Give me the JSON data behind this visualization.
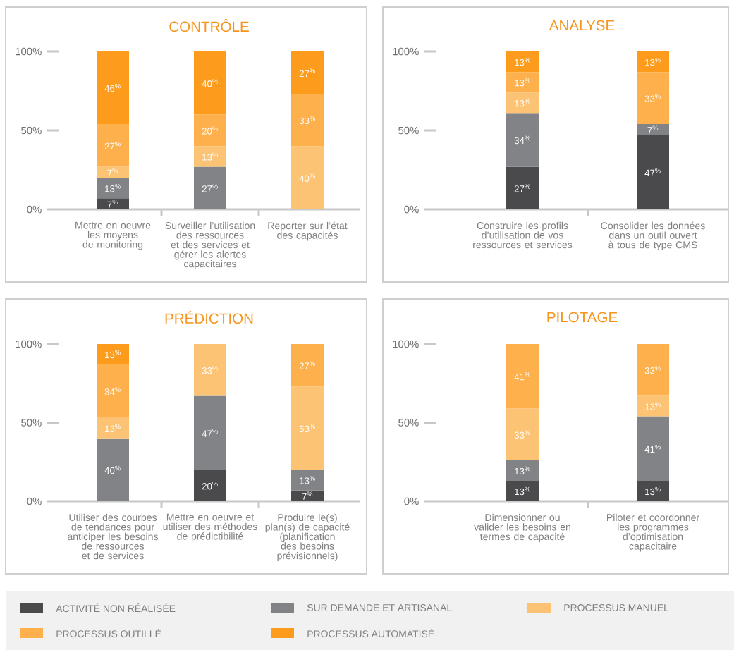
{
  "chart_data": [
    {
      "type": "bar",
      "title": "CONTRÔLE",
      "stacked": true,
      "categories": [
        "Mettre en oeuvre les moyens de monitoring",
        "Surveiller l’utilisation des ressources et des services et gérer les alertes capacitaires",
        "Reporter sur l’état des capacités"
      ],
      "ylim": [
        0,
        100
      ],
      "yticks": [
        {
          "value": 0,
          "label": "0%"
        },
        {
          "value": 50,
          "label": "50%"
        },
        {
          "value": 100,
          "label": "100%"
        }
      ],
      "series": [
        {
          "color": "#4a4a4c",
          "values": [
            7,
            null,
            null
          ],
          "value_labels": [
            "7$^{%}$",
            null,
            null
          ]
        },
        {
          "color": "#828386",
          "values": [
            13,
            27,
            null
          ],
          "value_labels": [
            "13$^{%}$",
            "27$^{%}$",
            null
          ]
        },
        {
          "color": "#fcc374",
          "values": [
            7,
            13,
            40
          ],
          "value_labels": [
            "7$^{%}$",
            "13$^{%}$",
            "40$^{%}$"
          ]
        },
        {
          "color": "#fdb04b",
          "values": [
            27,
            20,
            33
          ],
          "value_labels": [
            "27$^{%}$",
            "20$^{%}$",
            "33$^{%}$"
          ]
        },
        {
          "color": "#fd9c1c",
          "values": [
            46,
            40,
            27
          ],
          "value_labels": [
            "46$^{%}$",
            "40$^{%}$",
            "27$^{%}$"
          ]
        }
      ]
    },
    {
      "type": "bar",
      "title": "ANALYSE",
      "stacked": true,
      "categories": [
        "Construire les profils d’utilisation de vos ressources et services",
        "Consolider les données dans un outil ouvert à tous de type CMS"
      ],
      "ylim": [
        0,
        100
      ],
      "yticks": [
        {
          "value": 0,
          "label": "0%"
        },
        {
          "value": 50,
          "label": "50%"
        },
        {
          "value": 100,
          "label": "100%"
        }
      ],
      "series": [
        {
          "color": "#4a4a4c",
          "values": [
            27,
            47
          ],
          "value_labels": [
            "27$^{%}$",
            "47$^{%}$"
          ]
        },
        {
          "color": "#828386",
          "values": [
            34,
            7
          ],
          "value_labels": [
            "34$^{%}$",
            "7$^{%}$"
          ]
        },
        {
          "color": "#fcc374",
          "values": [
            13,
            null
          ],
          "value_labels": [
            "13$^{%}$",
            null
          ]
        },
        {
          "color": "#fdb04b",
          "values": [
            13,
            33
          ],
          "value_labels": [
            "13$^{%}$",
            "33$^{%}$"
          ]
        },
        {
          "color": "#fd9c1c",
          "values": [
            13,
            13
          ],
          "value_labels": [
            "13$^{%}$",
            "13$^{%}$"
          ]
        }
      ]
    },
    {
      "type": "bar",
      "title": "PRÉDICTION",
      "stacked": true,
      "categories": [
        "Utiliser des courbes de tendances pour anticiper les besoins de ressources et de services",
        "Mettre en oeuvre et utiliser des méthodes de prédictibilité",
        "Produire le(s) plan(s) de capacité (planification des besoins prévisionnels)"
      ],
      "ylim": [
        0,
        100
      ],
      "yticks": [
        {
          "value": 0,
          "label": "0%"
        },
        {
          "value": 50,
          "label": "50%"
        },
        {
          "value": 100,
          "label": "100%"
        }
      ],
      "series": [
        {
          "color": "#4a4a4c",
          "values": [
            null,
            20,
            7
          ],
          "value_labels": [
            null,
            "20$^{%}$",
            "7$^{%}$"
          ]
        },
        {
          "color": "#828386",
          "values": [
            40,
            47,
            13
          ],
          "value_labels": [
            "40$^{%}$",
            "47$^{%}$",
            "13$^{%}$"
          ]
        },
        {
          "color": "#fcc374",
          "values": [
            13,
            33,
            53
          ],
          "value_labels": [
            "13$^{%}$",
            "33$^{%}$",
            "53$^{%}$"
          ]
        },
        {
          "color": "#fdb04b",
          "values": [
            34,
            null,
            27
          ],
          "value_labels": [
            "34$^{%}$",
            null,
            "27$^{%}$"
          ]
        },
        {
          "color": "#fd9c1c",
          "values": [
            13,
            null,
            null
          ],
          "value_labels": [
            "13$^{%}$",
            null,
            null
          ]
        }
      ]
    },
    {
      "type": "bar",
      "title": "PILOTAGE",
      "stacked": true,
      "legend": "bottom",
      "categories": [
        "Dimensionner ou valider les besoins en termes de capacité",
        "Piloter et coordonner les programmes d’optimisation capacitaire"
      ],
      "ylim": [
        0,
        100
      ],
      "yticks": [
        {
          "value": 0,
          "label": "0%"
        },
        {
          "value": 50,
          "label": "50%"
        },
        {
          "value": 100,
          "label": "100%"
        }
      ],
      "series": [
        {
          "name": "ACTIVITÉ NON RÉALISÉE",
          "color": "#4a4a4c",
          "values": [
            13,
            13
          ],
          "value_labels": [
            "13$^{%}$",
            "13$^{%}$"
          ]
        },
        {
          "name": "SUR DEMANDE ET ARTISANAL",
          "color": "#828386",
          "values": [
            13,
            41
          ],
          "value_labels": [
            "13$^{%}$",
            "41$^{%}$"
          ]
        },
        {
          "name": "PROCESSUS MANUEL",
          "color": "#fcc374",
          "values": [
            33,
            13
          ],
          "value_labels": [
            "33$^{%}$",
            "13$^{%}$"
          ]
        },
        {
          "name": "PROCESSUS OUTILLÉ",
          "color": "#fdb04b",
          "values": [
            41,
            33
          ],
          "value_labels": [
            "41$^{%}$",
            "33$^{%}$"
          ]
        },
        {
          "name": "PROCESSUS AUTOMATISÉ",
          "color": "#fd9c1c",
          "values": [
            null,
            null
          ],
          "value_labels": [
            null,
            null
          ]
        }
      ]
    }
  ]
}
